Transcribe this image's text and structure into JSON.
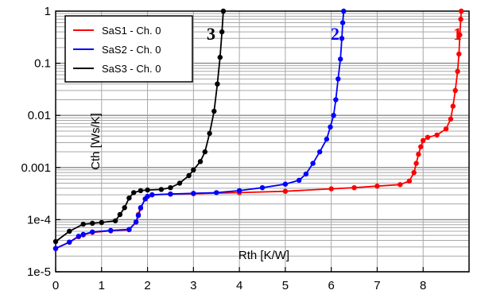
{
  "chart_data": {
    "type": "line",
    "title": "",
    "xlabel": "Rth  [K/W]",
    "ylabel": "Cth  [Ws/K]",
    "xlim": [
      0,
      9
    ],
    "ylim": [
      1e-05,
      1
    ],
    "yscale": "log",
    "x_ticks": [
      "0",
      "1",
      "2",
      "3",
      "4",
      "5",
      "6",
      "7",
      "8"
    ],
    "x_tick_values": [
      0,
      1,
      2,
      3,
      4,
      5,
      6,
      7,
      8
    ],
    "y_ticks": [
      "1e-5",
      "1e-4",
      "0.001",
      "0.01",
      "0.1",
      "1"
    ],
    "y_tick_values": [
      1e-05,
      0.0001,
      0.001,
      0.01,
      0.1,
      1
    ],
    "grid": true,
    "legend_position": "top-left",
    "series": [
      {
        "name": "SaS1 - Ch. 0",
        "color": "#ff0000",
        "curve_label": "1",
        "points": [
          [
            0,
            2.8e-05
          ],
          [
            0.3,
            3.7e-05
          ],
          [
            0.5,
            4.7e-05
          ],
          [
            0.6,
            5.1e-05
          ],
          [
            0.8,
            5.7e-05
          ],
          [
            1.2,
            6.1e-05
          ],
          [
            1.6,
            6.4e-05
          ],
          [
            1.75,
            9e-05
          ],
          [
            1.8,
            0.000125
          ],
          [
            1.85,
            0.000165
          ],
          [
            1.95,
            0.00025
          ],
          [
            2.0,
            0.00028
          ],
          [
            2.1,
            0.0003
          ],
          [
            2.5,
            0.00031
          ],
          [
            3.0,
            0.000315
          ],
          [
            4.0,
            0.00033
          ],
          [
            5.0,
            0.00035
          ],
          [
            6.0,
            0.00039
          ],
          [
            6.5,
            0.00041
          ],
          [
            7.0,
            0.00044
          ],
          [
            7.5,
            0.00047
          ],
          [
            7.7,
            0.00055
          ],
          [
            7.8,
            0.0008
          ],
          [
            7.85,
            0.0012
          ],
          [
            7.9,
            0.0018
          ],
          [
            7.95,
            0.0025
          ],
          [
            8.0,
            0.0033
          ],
          [
            8.1,
            0.0038
          ],
          [
            8.3,
            0.0042
          ],
          [
            8.5,
            0.0055
          ],
          [
            8.6,
            0.0085
          ],
          [
            8.65,
            0.015
          ],
          [
            8.7,
            0.03
          ],
          [
            8.75,
            0.07
          ],
          [
            8.78,
            0.15
          ],
          [
            8.8,
            0.35
          ],
          [
            8.82,
            0.7
          ],
          [
            8.83,
            1.0
          ]
        ]
      },
      {
        "name": "SaS2 - Ch. 0",
        "color": "#0000ff",
        "curve_label": "2",
        "points": [
          [
            0,
            2.8e-05
          ],
          [
            0.3,
            3.7e-05
          ],
          [
            0.5,
            4.8e-05
          ],
          [
            0.6,
            5.2e-05
          ],
          [
            0.8,
            5.8e-05
          ],
          [
            1.2,
            6.2e-05
          ],
          [
            1.6,
            6.5e-05
          ],
          [
            1.75,
            9e-05
          ],
          [
            1.8,
            0.00012
          ],
          [
            1.85,
            0.00017
          ],
          [
            1.95,
            0.00025
          ],
          [
            2.0,
            0.00028
          ],
          [
            2.1,
            0.0003
          ],
          [
            2.5,
            0.00031
          ],
          [
            3.0,
            0.00032
          ],
          [
            3.5,
            0.00033
          ],
          [
            4.0,
            0.00036
          ],
          [
            4.5,
            0.00041
          ],
          [
            5.0,
            0.00048
          ],
          [
            5.3,
            0.00057
          ],
          [
            5.45,
            0.00075
          ],
          [
            5.6,
            0.0012
          ],
          [
            5.75,
            0.002
          ],
          [
            5.9,
            0.0035
          ],
          [
            5.98,
            0.006
          ],
          [
            6.05,
            0.01
          ],
          [
            6.1,
            0.02
          ],
          [
            6.15,
            0.05
          ],
          [
            6.2,
            0.12
          ],
          [
            6.23,
            0.3
          ],
          [
            6.25,
            0.6
          ],
          [
            6.27,
            1.0
          ]
        ]
      },
      {
        "name": "SaS3 - Ch. 0",
        "color": "#000000",
        "curve_label": "3",
        "points": [
          [
            0,
            3.8e-05
          ],
          [
            0.3,
            6e-05
          ],
          [
            0.6,
            8.2e-05
          ],
          [
            0.8,
            8.5e-05
          ],
          [
            1.0,
            8.8e-05
          ],
          [
            1.3,
            9.5e-05
          ],
          [
            1.4,
            0.000125
          ],
          [
            1.5,
            0.00017
          ],
          [
            1.6,
            0.00026
          ],
          [
            1.7,
            0.00033
          ],
          [
            1.85,
            0.00036
          ],
          [
            2.0,
            0.00037
          ],
          [
            2.3,
            0.00038
          ],
          [
            2.5,
            0.00041
          ],
          [
            2.7,
            0.0005
          ],
          [
            2.9,
            0.0007
          ],
          [
            3.0,
            0.0009
          ],
          [
            3.15,
            0.0013
          ],
          [
            3.25,
            0.002
          ],
          [
            3.35,
            0.0045
          ],
          [
            3.45,
            0.012
          ],
          [
            3.52,
            0.04
          ],
          [
            3.58,
            0.13
          ],
          [
            3.62,
            0.4
          ],
          [
            3.65,
            1.0
          ]
        ]
      }
    ]
  }
}
